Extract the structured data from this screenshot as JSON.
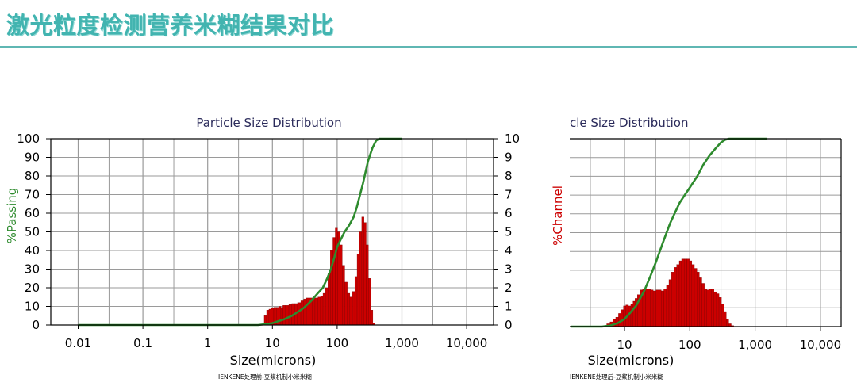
{
  "page": {
    "title": "激光粒度检测营养米糊结果对比"
  },
  "colors": {
    "title": "#42b4b0",
    "rule": "#5fb7b3",
    "passing_curve": "#2e8b2e",
    "histogram": "#cc0000",
    "axis_left_label": "#2e8b2e",
    "axis_right_label": "#cc0000"
  },
  "chart_data": [
    {
      "type": "bar",
      "title": "Particle Size Distribution",
      "xlabel": "Size(microns)",
      "ylabel_left": "%Passing",
      "ylabel_right": "%Channel",
      "caption": "IENKENE处理前-豆浆机制小米米糊",
      "x_scale": "log",
      "xlim": [
        0.005,
        20000
      ],
      "x_ticks": [
        0.01,
        0.1,
        1,
        10,
        100,
        1000,
        10000
      ],
      "x_tick_labels": [
        "0.01",
        "0.1",
        "1",
        "10",
        "100",
        "1,000",
        "10,000"
      ],
      "ylim_left": [
        0,
        100
      ],
      "y_ticks_left": [
        "0",
        "10",
        "20",
        "30",
        "40",
        "50",
        "60",
        "70",
        "80",
        "90",
        "100"
      ],
      "ylim_right": [
        0,
        10
      ],
      "y_ticks_right": [
        "0",
        "1",
        "2",
        "3",
        "4",
        "5",
        "6",
        "7",
        "8",
        "9",
        "10"
      ],
      "grid": true,
      "series": [
        {
          "kind": "channel_histogram",
          "points": [
            [
              7.8,
              0.5
            ],
            [
              8.5,
              0.8
            ],
            [
              9.2,
              0.85
            ],
            [
              10,
              0.9
            ],
            [
              11,
              0.95
            ],
            [
              12,
              0.95
            ],
            [
              13,
              1.0
            ],
            [
              14,
              0.95
            ],
            [
              15,
              1.05
            ],
            [
              17,
              1.05
            ],
            [
              19,
              1.1
            ],
            [
              21,
              1.15
            ],
            [
              23,
              1.15
            ],
            [
              26,
              1.2
            ],
            [
              29,
              1.3
            ],
            [
              32,
              1.4
            ],
            [
              35,
              1.45
            ],
            [
              39,
              1.45
            ],
            [
              43,
              1.45
            ],
            [
              48,
              1.45
            ],
            [
              53,
              1.5
            ],
            [
              58,
              1.55
            ],
            [
              63,
              1.7
            ],
            [
              69,
              2.0
            ],
            [
              75,
              2.8
            ],
            [
              82,
              4.0
            ],
            [
              90,
              4.7
            ],
            [
              97,
              5.2
            ],
            [
              106,
              5.0
            ],
            [
              115,
              4.3
            ],
            [
              125,
              3.2
            ],
            [
              137,
              2.3
            ],
            [
              150,
              1.7
            ],
            [
              164,
              1.5
            ],
            [
              180,
              1.8
            ],
            [
              195,
              2.6
            ],
            [
              212,
              3.8
            ],
            [
              230,
              5.0
            ],
            [
              250,
              5.8
            ],
            [
              270,
              5.5
            ],
            [
              292,
              4.3
            ],
            [
              316,
              2.5
            ],
            [
              342,
              0.8
            ],
            [
              370,
              0.1
            ]
          ]
        },
        {
          "kind": "cumulative_passing",
          "points": [
            [
              0.01,
              0
            ],
            [
              6,
              0
            ],
            [
              8,
              0.5
            ],
            [
              10,
              1
            ],
            [
              15,
              3
            ],
            [
              20,
              5
            ],
            [
              30,
              9
            ],
            [
              40,
              13
            ],
            [
              50,
              17
            ],
            [
              60,
              20
            ],
            [
              70,
              25
            ],
            [
              80,
              30
            ],
            [
              90,
              36
            ],
            [
              100,
              42
            ],
            [
              110,
              45
            ],
            [
              130,
              50
            ],
            [
              150,
              53
            ],
            [
              180,
              58
            ],
            [
              200,
              63
            ],
            [
              250,
              76
            ],
            [
              300,
              88
            ],
            [
              350,
              95
            ],
            [
              400,
              99
            ],
            [
              450,
              100
            ],
            [
              1000,
              100
            ]
          ]
        }
      ]
    },
    {
      "type": "bar",
      "title": "cle Size Distribution",
      "xlabel": "Size(microns)",
      "ylabel_right": "%Channel",
      "caption": "IENKENE处理后-豆浆机制小米米糊",
      "x_scale": "log",
      "x_ticks": [
        10,
        100,
        1000,
        10000
      ],
      "x_tick_labels": [
        "10",
        "100",
        "1,000",
        "10,000"
      ],
      "grid": true,
      "series": [
        {
          "kind": "channel_histogram",
          "points": [
            [
              5,
              0.05
            ],
            [
              5.7,
              0.15
            ],
            [
              6.3,
              0.25
            ],
            [
              7,
              0.4
            ],
            [
              7.7,
              0.5
            ],
            [
              8.5,
              0.7
            ],
            [
              9.3,
              0.9
            ],
            [
              10,
              1.1
            ],
            [
              11,
              1.15
            ],
            [
              12,
              1.1
            ],
            [
              13,
              1.2
            ],
            [
              14,
              1.35
            ],
            [
              15,
              1.5
            ],
            [
              16.5,
              1.7
            ],
            [
              18,
              1.95
            ],
            [
              20,
              2.0
            ],
            [
              22,
              2.0
            ],
            [
              24,
              2.0
            ],
            [
              26,
              1.95
            ],
            [
              29,
              1.9
            ],
            [
              32,
              1.95
            ],
            [
              35,
              1.95
            ],
            [
              38,
              1.9
            ],
            [
              42,
              2.0
            ],
            [
              46,
              2.2
            ],
            [
              50,
              2.5
            ],
            [
              55,
              2.9
            ],
            [
              60,
              3.15
            ],
            [
              66,
              3.3
            ],
            [
              72,
              3.5
            ],
            [
              78,
              3.6
            ],
            [
              86,
              3.6
            ],
            [
              94,
              3.6
            ],
            [
              103,
              3.5
            ],
            [
              112,
              3.3
            ],
            [
              123,
              3.1
            ],
            [
              134,
              2.9
            ],
            [
              146,
              2.6
            ],
            [
              160,
              2.3
            ],
            [
              175,
              2.0
            ],
            [
              190,
              1.95
            ],
            [
              207,
              2.0
            ],
            [
              225,
              2.0
            ],
            [
              245,
              1.85
            ],
            [
              268,
              1.75
            ],
            [
              292,
              1.55
            ],
            [
              318,
              1.2
            ],
            [
              347,
              0.8
            ],
            [
              378,
              0.4
            ],
            [
              412,
              0.15
            ],
            [
              450,
              0.05
            ]
          ]
        },
        {
          "kind": "cumulative_passing",
          "points": [
            [
              1.5,
              0
            ],
            [
              4.5,
              0
            ],
            [
              6,
              0.5
            ],
            [
              8,
              2
            ],
            [
              10,
              4
            ],
            [
              12,
              7
            ],
            [
              15,
              11
            ],
            [
              20,
              19
            ],
            [
              25,
              27
            ],
            [
              30,
              34
            ],
            [
              40,
              46
            ],
            [
              50,
              55
            ],
            [
              60,
              61
            ],
            [
              70,
              66
            ],
            [
              80,
              69
            ],
            [
              100,
              74
            ],
            [
              130,
              80
            ],
            [
              160,
              86
            ],
            [
              200,
              91
            ],
            [
              250,
              95
            ],
            [
              300,
              98
            ],
            [
              350,
              99.5
            ],
            [
              400,
              100
            ],
            [
              1500,
              100
            ]
          ]
        }
      ]
    }
  ]
}
